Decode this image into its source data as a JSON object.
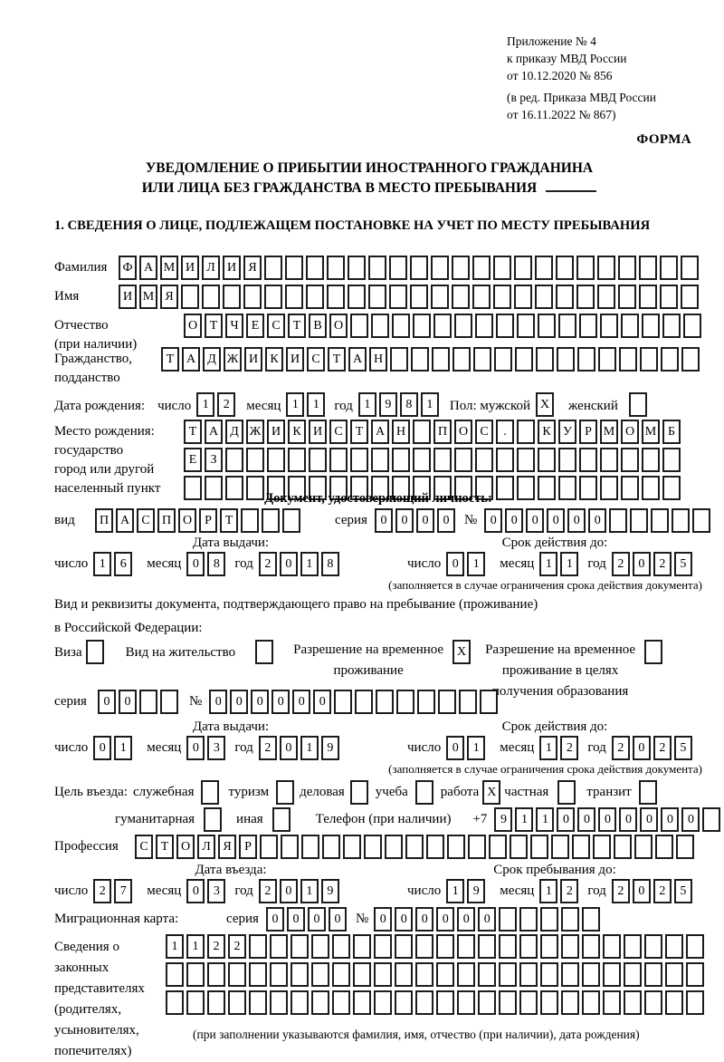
{
  "colors": {
    "ink": "#1c1c1c",
    "paper": "#ffffff"
  },
  "meta": {
    "app1": "Приложение № 4",
    "app2": "к приказу МВД России",
    "app3": "от 10.12.2020 № 856",
    "app4": "(в ред. Приказа МВД России",
    "app5": "от 16.11.2022 № 867)",
    "forma": "ФОРМА"
  },
  "title": {
    "line1": "УВЕДОМЛЕНИЕ О ПРИБЫТИИ ИНОСТРАННОГО ГРАЖДАНИНА",
    "line2": "ИЛИ ЛИЦА БЕЗ ГРАЖДАНСТВА В МЕСТО ПРЕБЫВАНИЯ"
  },
  "section1_heading": "1. СВЕДЕНИЯ О ЛИЦЕ, ПОДЛЕЖАЩЕМ ПОСТАНОВКЕ НА УЧЕТ ПО МЕСТУ ПРЕБЫВАНИЯ",
  "surname": {
    "label": "Фамилия",
    "value": {
      "text": "ФАМИЛИЯ",
      "len": 28
    }
  },
  "firstname": {
    "label": "Имя",
    "value": {
      "text": "ИМЯ",
      "len": 28
    }
  },
  "patronymic": {
    "label1": "Отчество",
    "label2": "(при наличии)",
    "value": {
      "text": "ОТЧЕСТВО",
      "len": 25
    }
  },
  "citizenship": {
    "label1": "Гражданство,",
    "label2": "подданство",
    "value": {
      "text": "ТАДЖИКИСТАН",
      "len": 26
    }
  },
  "birth_date": {
    "label": "Дата рождения:",
    "day_label": "число",
    "day": {
      "text": "12",
      "len": 2
    },
    "month_label": "месяц",
    "month": {
      "text": "11",
      "len": 2
    },
    "year_label": "год",
    "year": {
      "text": "1981",
      "len": 4
    },
    "sex_label": "Пол: мужской",
    "male": {
      "text": "X",
      "len": 1
    },
    "female_label": "женский",
    "female": {
      "text": "",
      "len": 1
    }
  },
  "birth_place": {
    "label1": "Место рождения:",
    "label2": "государство",
    "label3": "город или другой",
    "label4": "населенный пункт",
    "row1": {
      "text": "ТАДЖИКИСТАН ПОС. КУРМОМБ",
      "len": 24
    },
    "row2": {
      "text": "ЕЗ",
      "len": 24
    },
    "row3": {
      "text": "",
      "len": 24
    }
  },
  "identity_doc": {
    "heading": "Документ, удостоверяющий личность:",
    "type_label": "вид",
    "type": {
      "text": "ПАСПОРТ",
      "len": 10
    },
    "series_label": "серия",
    "series": {
      "text": "0000",
      "len": 4
    },
    "number_label": "№",
    "number": {
      "text": "000000",
      "len": 11
    },
    "issue_heading": "Дата выдачи:",
    "issue_day_label": "число",
    "issue_day": {
      "text": "16",
      "len": 2
    },
    "issue_month_label": "месяц",
    "issue_month": {
      "text": "08",
      "len": 2
    },
    "issue_year_label": "год",
    "issue_year": {
      "text": "2018",
      "len": 4
    },
    "expiry_heading": "Срок действия до:",
    "expiry_day_label": "число",
    "expiry_day": {
      "text": "01",
      "len": 2
    },
    "expiry_month_label": "месяц",
    "expiry_month": {
      "text": "11",
      "len": 2
    },
    "expiry_year_label": "год",
    "expiry_year": {
      "text": "2025",
      "len": 4
    },
    "note": "(заполняется в случае ограничения срока действия документа)"
  },
  "residence_doc": {
    "line1": "Вид и реквизиты документа, подтверждающего право на пребывание (проживание)",
    "line2": "в Российской Федерации:",
    "visa_label": "Виза",
    "visa": {
      "text": "",
      "len": 1
    },
    "permit_label": "Вид на жительство",
    "permit": {
      "text": "",
      "len": 1
    },
    "rvp_label1": "Разрешение на временное",
    "rvp_label2": "проживание",
    "rvp": {
      "text": "X",
      "len": 1
    },
    "rvpo_label1": "Разрешение на временное",
    "rvpo_label2": "проживание в целях",
    "rvpo_label3": "получения образования",
    "rvpo": {
      "text": "",
      "len": 1
    },
    "series_label": "серия",
    "series": {
      "text": "00",
      "len": 4
    },
    "number_label": "№",
    "number": {
      "text": "000000",
      "len": 14
    },
    "issue_heading": "Дата выдачи:",
    "issue_day_label": "число",
    "issue_day": {
      "text": "01",
      "len": 2
    },
    "issue_month_label": "месяц",
    "issue_month": {
      "text": "03",
      "len": 2
    },
    "issue_year_label": "год",
    "issue_year": {
      "text": "2019",
      "len": 4
    },
    "expiry_heading": "Срок действия до:",
    "expiry_day_label": "число",
    "expiry_day": {
      "text": "01",
      "len": 2
    },
    "expiry_month_label": "месяц",
    "expiry_month": {
      "text": "12",
      "len": 2
    },
    "expiry_year_label": "год",
    "expiry_year": {
      "text": "2025",
      "len": 4
    },
    "note": "(заполняется в случае ограничения срока действия документа)"
  },
  "purpose": {
    "label": "Цель въезда:",
    "options_row1": [
      {
        "label": "служебная",
        "box": {
          "text": "",
          "len": 1
        }
      },
      {
        "label": "туризм",
        "box": {
          "text": "",
          "len": 1
        }
      },
      {
        "label": "деловая",
        "box": {
          "text": "",
          "len": 1
        }
      },
      {
        "label": "учеба",
        "box": {
          "text": "",
          "len": 1
        }
      },
      {
        "label": "работа",
        "box": {
          "text": "X",
          "len": 1
        }
      },
      {
        "label": "частная",
        "box": {
          "text": "",
          "len": 1
        }
      },
      {
        "label": "транзит",
        "box": {
          "text": "",
          "len": 1
        }
      }
    ],
    "options_row2": [
      {
        "label": "гуманитарная",
        "box": {
          "text": "",
          "len": 1
        }
      },
      {
        "label": "иная",
        "box": {
          "text": "",
          "len": 1
        }
      }
    ],
    "phone_label": "Телефон (при наличии)",
    "phone_prefix": "+7",
    "phone": {
      "text": "9110000000",
      "len": 11
    }
  },
  "profession": {
    "label": "Профессия",
    "value": {
      "text": "СТОЛЯР",
      "len": 27
    }
  },
  "entry": {
    "issue_heading": "Дата въезда:",
    "issue_day_label": "число",
    "issue_day": {
      "text": "27",
      "len": 2
    },
    "issue_month_label": "месяц",
    "issue_month": {
      "text": "03",
      "len": 2
    },
    "issue_year_label": "год",
    "issue_year": {
      "text": "2019",
      "len": 4
    },
    "stay_heading": "Срок пребывания до:",
    "stay_day_label": "число",
    "stay_day": {
      "text": "19",
      "len": 2
    },
    "stay_month_label": "месяц",
    "stay_month": {
      "text": "12",
      "len": 2
    },
    "stay_year_label": "год",
    "stay_year": {
      "text": "2025",
      "len": 4
    }
  },
  "migration_card": {
    "label": "Миграционная карта:",
    "series_label": "серия",
    "series": {
      "text": "0000",
      "len": 4
    },
    "number_label": "№",
    "number": {
      "text": "000000",
      "len": 11
    }
  },
  "guardians": {
    "label1": "Сведения о",
    "label2": "законных",
    "label3": "представителях",
    "label4": "(родителях,",
    "label5": "усыновителях,",
    "label6": "попечителях)",
    "row1": {
      "text": "1122",
      "len": 26
    },
    "row2": {
      "text": "",
      "len": 26
    },
    "row3": {
      "text": "",
      "len": 26
    },
    "note": "(при заполнении указываются фамилия, имя, отчество (при наличии), дата рождения)"
  }
}
